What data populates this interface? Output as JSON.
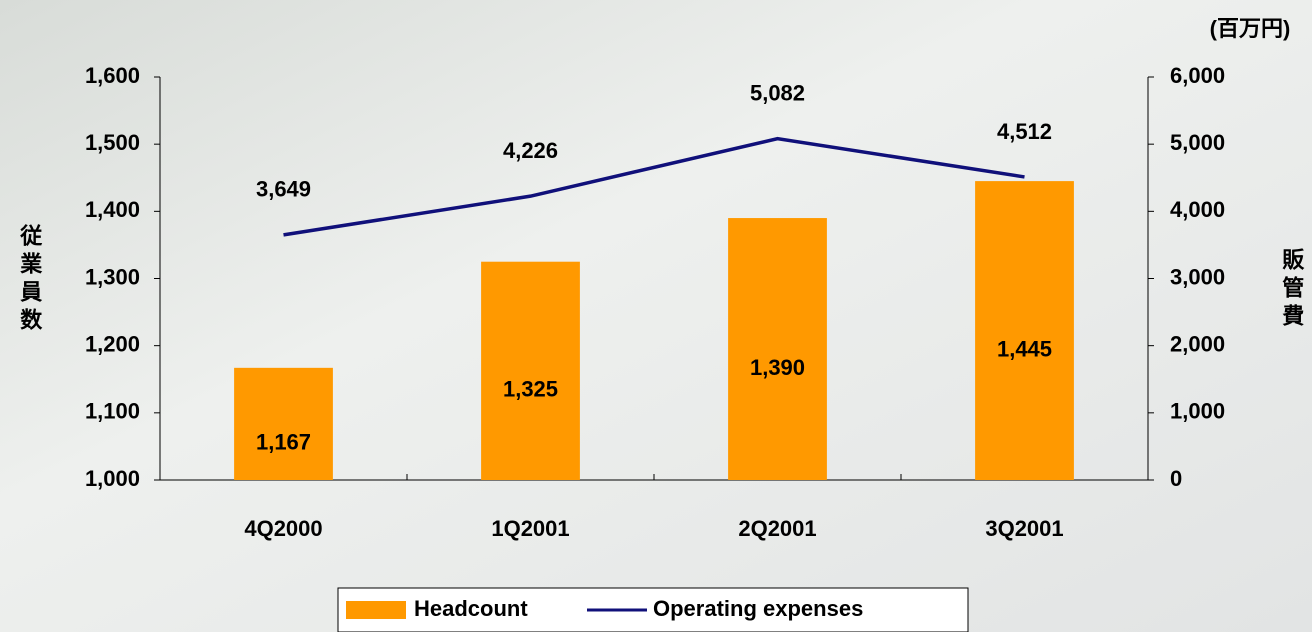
{
  "chart_data": {
    "type": "bar",
    "categories": [
      "4Q2000",
      "1Q2001",
      "2Q2001",
      "3Q2001"
    ],
    "series": [
      {
        "name": "Headcount",
        "type": "bar",
        "color": "#ff9900",
        "values": [
          1167,
          1325,
          1390,
          1445
        ],
        "value_labels": [
          "1,167",
          "1,325",
          "1,390",
          "1,445"
        ]
      },
      {
        "name": "Operating expenses",
        "type": "line",
        "axis": "y2",
        "color": "#10107a",
        "values": [
          3649,
          4226,
          5082,
          4512
        ],
        "value_labels": [
          "3,649",
          "4,226",
          "5,082",
          "4,512"
        ]
      }
    ],
    "ylabel": "従業員数",
    "y2label": "販管費",
    "y2unit": "(百万円)",
    "ylim": [
      1000,
      1600
    ],
    "yticks": [
      {
        "value": 1000,
        "label": "1,000"
      },
      {
        "value": 1100,
        "label": "1,100"
      },
      {
        "value": 1200,
        "label": "1,200"
      },
      {
        "value": 1300,
        "label": "1,300"
      },
      {
        "value": 1400,
        "label": "1,400"
      },
      {
        "value": 1500,
        "label": "1,500"
      },
      {
        "value": 1600,
        "label": "1,600"
      }
    ],
    "y2lim": [
      0,
      6000
    ],
    "y2ticks": [
      0,
      {
        "value": 1000,
        "label": "1,000"
      },
      {
        "value": 2000,
        "label": "2,000"
      },
      {
        "value": 3000,
        "label": "3,000"
      },
      {
        "value": 4000,
        "label": "4,000"
      },
      {
        "value": 5000,
        "label": "5,000"
      },
      {
        "value": 6000,
        "label": "6,000"
      }
    ],
    "grid": false,
    "legend": "bottom"
  }
}
